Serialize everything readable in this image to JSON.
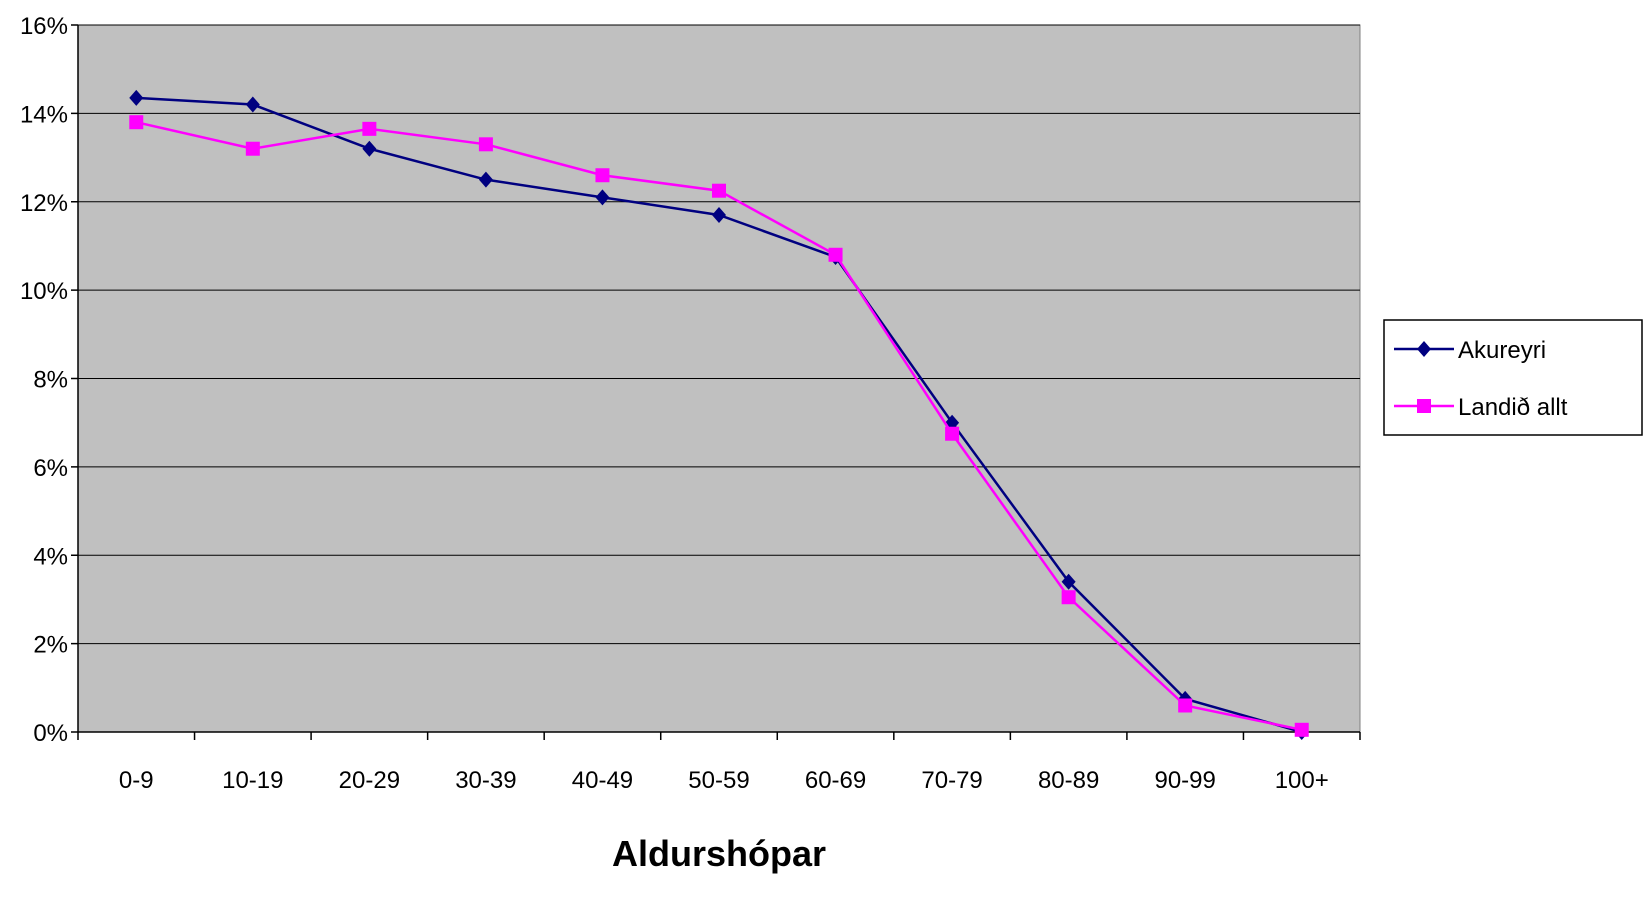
{
  "chart_data": {
    "type": "line",
    "title": "",
    "xlabel": "Aldurshópar",
    "ylabel": "",
    "categories": [
      "0-9",
      "10-19",
      "20-29",
      "30-39",
      "40-49",
      "50-59",
      "60-69",
      "70-79",
      "80-89",
      "90-99",
      "100+"
    ],
    "ylim": [
      0,
      16
    ],
    "yticks": [
      "0%",
      "2%",
      "4%",
      "6%",
      "8%",
      "10%",
      "12%",
      "14%",
      "16%"
    ],
    "grid": true,
    "legend_position": "right",
    "series": [
      {
        "name": "Akureyri",
        "color": "#000080",
        "marker": "diamond",
        "values": [
          14.35,
          14.2,
          13.2,
          12.5,
          12.1,
          11.7,
          10.75,
          7.0,
          3.4,
          0.75,
          0.0
        ]
      },
      {
        "name": "Landið allt",
        "color": "#ff00ff",
        "marker": "square",
        "values": [
          13.8,
          13.2,
          13.65,
          13.3,
          12.6,
          12.25,
          10.8,
          6.75,
          3.05,
          0.6,
          0.05
        ]
      }
    ],
    "plot_background": "#c0c0c0"
  }
}
